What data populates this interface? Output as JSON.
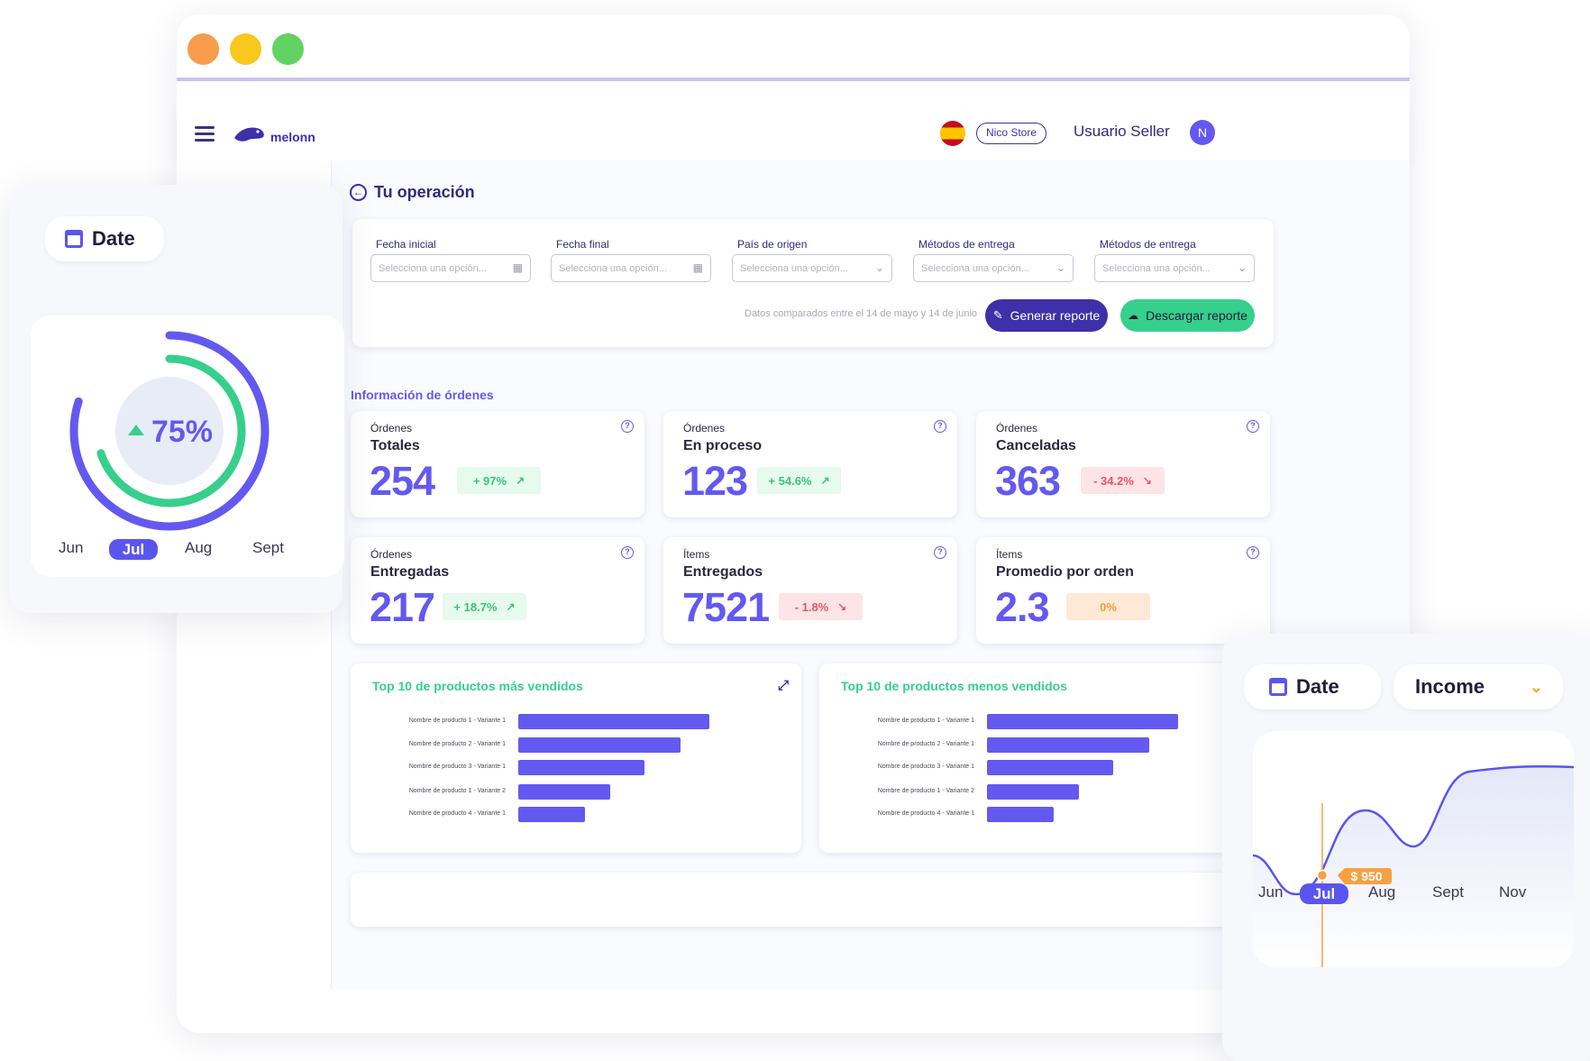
{
  "colors": {
    "primary": "#6359f0",
    "dark_primary": "#3d30a8",
    "green": "#37cf8c",
    "orange": "#f7a042",
    "red": "#e8546b",
    "window_dots": [
      "#f79c4a",
      "#f9c71d",
      "#62d262"
    ]
  },
  "header": {
    "brand": "melonn",
    "flag_icon": "spain-flag-icon",
    "store": "Nico Store",
    "user": "Usuario Seller",
    "avatar_initial": "N"
  },
  "page": {
    "title": "Tu operación",
    "back_icon": "arrow-left-circle-icon"
  },
  "filters": {
    "fields": [
      {
        "label": "Fecha inicial",
        "placeholder": "Selecciona una opción...",
        "icon": "calendar-icon"
      },
      {
        "label": "Fecha final",
        "placeholder": "Selecciona una opción...",
        "icon": "calendar-icon"
      },
      {
        "label": "País de origen",
        "placeholder": "Selecciona una opción...",
        "icon": "chevron-down-icon"
      },
      {
        "label": "Métodos de entrega",
        "placeholder": "Selecciona una opción...",
        "icon": "chevron-down-icon"
      },
      {
        "label": "Métodos de entrega",
        "placeholder": "Selecciona una opción...",
        "icon": "chevron-down-icon"
      }
    ],
    "note": "Datos comparados entre el 14 de mayo y 14 de junio",
    "generate_label": "Generar reporte",
    "download_label": "Descargar reporte"
  },
  "orders": {
    "section_title": "Información de órdenes",
    "metrics": [
      {
        "small": "Órdenes",
        "title": "Totales",
        "value": "254",
        "change": "+ 97%",
        "trend": "up"
      },
      {
        "small": "Órdenes",
        "title": "En proceso",
        "value": "123",
        "change": "+ 54.6%",
        "trend": "up"
      },
      {
        "small": "Órdenes",
        "title": "Canceladas",
        "value": "363",
        "change": "- 34.2%",
        "trend": "down"
      },
      {
        "small": "Órdenes",
        "title": "Entregadas",
        "value": "217",
        "change": "+ 18.7%",
        "trend": "up"
      },
      {
        "small": "Ítems",
        "title": "Entregados",
        "value": "7521",
        "change": "- 1.8%",
        "trend": "down"
      },
      {
        "small": "Ítems",
        "title": "Promedio por orden",
        "value": "2.3",
        "change": "0%",
        "trend": "flat"
      }
    ]
  },
  "chart_data": [
    {
      "type": "bar",
      "orientation": "horizontal",
      "title": "Top 10 de productos más vendidos",
      "categories": [
        "Nombre de producto 1 - Variante 1",
        "Nombre de producto 2 - Variante 1",
        "Nombre de producto 3 - Variante 1",
        "Nombre de producto 1 - Variante 2",
        "Nombre de producto 4 - Variante 1"
      ],
      "values": [
        100,
        85,
        66,
        48,
        35
      ],
      "xlim": [
        0,
        100
      ]
    },
    {
      "type": "bar",
      "orientation": "horizontal",
      "title": "Top 10 de productos menos vendidos",
      "categories": [
        "Nombre de producto 1 - Variante 1",
        "Nombre de producto 2 - Variante 1",
        "Nombre de producto 3 - Variante 1",
        "Nombre de producto 1 - Variante 2",
        "Nombre de producto 4 - Variante 1"
      ],
      "values": [
        100,
        85,
        66,
        48,
        35
      ],
      "xlim": [
        0,
        100
      ]
    },
    {
      "type": "pie",
      "title": "",
      "center_label": "75%",
      "values": [
        75
      ],
      "rings": [
        {
          "fraction": 0.8
        },
        {
          "fraction": 0.7
        }
      ]
    },
    {
      "type": "line",
      "title": "",
      "x": [
        "Jun",
        "Jul",
        "Aug",
        "Sept",
        "Nov"
      ],
      "y": [
        900,
        950,
        1350,
        1200,
        1650
      ],
      "highlight": {
        "x": "Jul",
        "label": "$ 950"
      }
    }
  ],
  "left_panel": {
    "date_label": "Date",
    "months": [
      "Jun",
      "Jul",
      "Aug",
      "Sept"
    ],
    "selected": "Jul"
  },
  "right_panel": {
    "date_label": "Date",
    "dropdown_label": "Income",
    "months": [
      "Jun",
      "Jul",
      "Aug",
      "Sept",
      "Nov"
    ],
    "selected": "Jul"
  }
}
